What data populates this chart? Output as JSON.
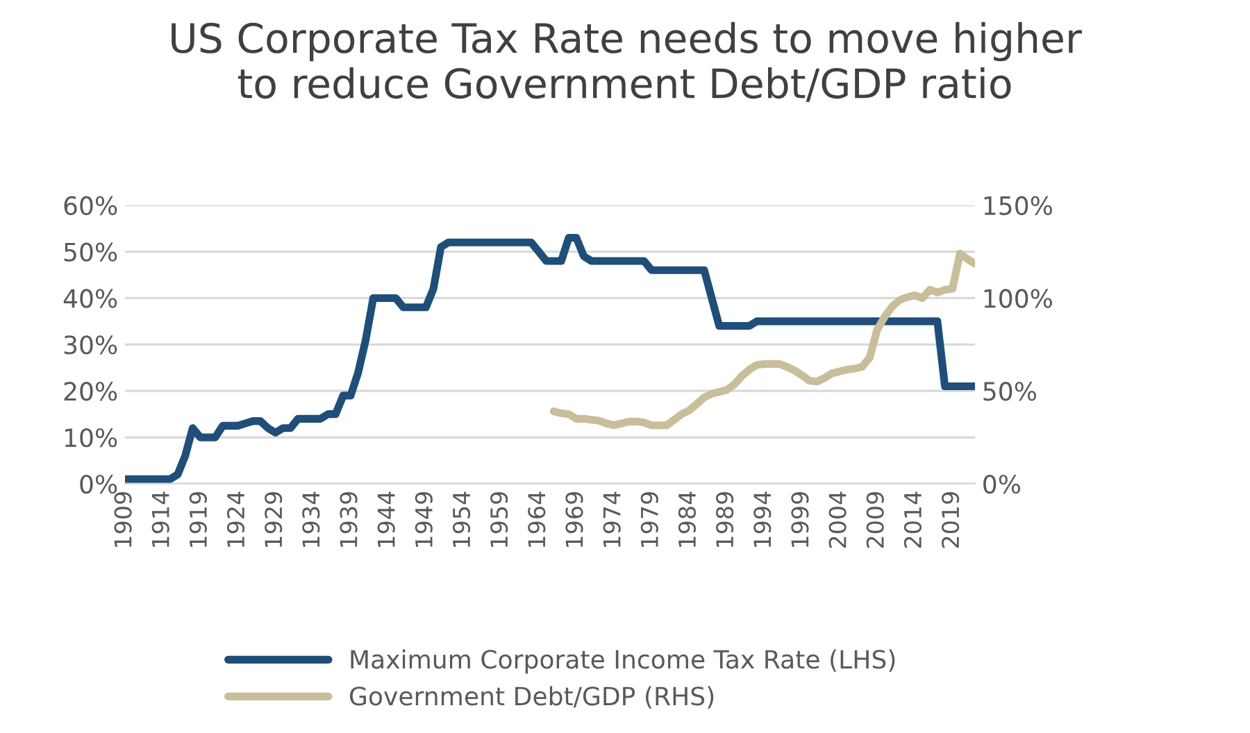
{
  "chart_data": {
    "type": "line",
    "title": "US Corporate Tax Rate needs to move higher\nto reduce Government Debt/GDP ratio",
    "x": [
      1909,
      1910,
      1911,
      1912,
      1913,
      1914,
      1915,
      1916,
      1917,
      1918,
      1919,
      1920,
      1921,
      1922,
      1923,
      1924,
      1925,
      1926,
      1927,
      1928,
      1929,
      1930,
      1931,
      1932,
      1933,
      1934,
      1935,
      1936,
      1937,
      1938,
      1939,
      1940,
      1941,
      1942,
      1943,
      1944,
      1945,
      1946,
      1947,
      1948,
      1949,
      1950,
      1951,
      1952,
      1953,
      1954,
      1955,
      1956,
      1957,
      1958,
      1959,
      1960,
      1961,
      1962,
      1963,
      1964,
      1965,
      1966,
      1967,
      1968,
      1969,
      1970,
      1971,
      1972,
      1973,
      1974,
      1975,
      1976,
      1977,
      1978,
      1979,
      1980,
      1981,
      1982,
      1983,
      1984,
      1985,
      1986,
      1987,
      1988,
      1989,
      1990,
      1991,
      1992,
      1993,
      1994,
      1995,
      1996,
      1997,
      1998,
      1999,
      2000,
      2001,
      2002,
      2003,
      2004,
      2005,
      2006,
      2007,
      2008,
      2009,
      2010,
      2011,
      2012,
      2013,
      2014,
      2015,
      2016,
      2017,
      2018,
      2019,
      2020,
      2021,
      2022
    ],
    "series": [
      {
        "name": "Maximum Corporate Income Tax Rate (LHS)",
        "color": "#1f4e79",
        "values": [
          1,
          1,
          1,
          1,
          1,
          1,
          1,
          2,
          6,
          12,
          10,
          10,
          10,
          12.5,
          12.5,
          12.5,
          13,
          13.5,
          13.5,
          12,
          11,
          12,
          12,
          14,
          14,
          14,
          14,
          15,
          15,
          19,
          19,
          24,
          31,
          40,
          40,
          40,
          40,
          38,
          38,
          38,
          38,
          42,
          51,
          52,
          52,
          52,
          52,
          52,
          52,
          52,
          52,
          52,
          52,
          52,
          52,
          50,
          48,
          48,
          48,
          53,
          53,
          49,
          48,
          48,
          48,
          48,
          48,
          48,
          48,
          48,
          46,
          46,
          46,
          46,
          46,
          46,
          46,
          46,
          40,
          34,
          34,
          34,
          34,
          34,
          35,
          35,
          35,
          35,
          35,
          35,
          35,
          35,
          35,
          35,
          35,
          35,
          35,
          35,
          35,
          35,
          35,
          35,
          35,
          35,
          35,
          35,
          35,
          35,
          35,
          21,
          21,
          21,
          21,
          21
        ]
      },
      {
        "name": "Government Debt/GDP (RHS)",
        "color": "#c8bf9a",
        "axis": "y2",
        "values": [
          null,
          null,
          null,
          null,
          null,
          null,
          null,
          null,
          null,
          null,
          null,
          null,
          null,
          null,
          null,
          null,
          null,
          null,
          null,
          null,
          null,
          null,
          null,
          null,
          null,
          null,
          null,
          null,
          null,
          null,
          null,
          null,
          null,
          null,
          null,
          null,
          null,
          null,
          null,
          null,
          null,
          null,
          null,
          null,
          null,
          null,
          null,
          null,
          null,
          null,
          null,
          null,
          null,
          null,
          null,
          null,
          null,
          39,
          38,
          37.5,
          35,
          35,
          34.5,
          34,
          32.5,
          31.5,
          32.5,
          33.5,
          33.5,
          33,
          31.5,
          31.5,
          31.5,
          34.5,
          37.5,
          39.5,
          43,
          46.5,
          48.5,
          49.5,
          50.5,
          53.5,
          58,
          61.5,
          64,
          64.5,
          64.5,
          64.5,
          63,
          61,
          58.5,
          55.5,
          55,
          57,
          59.5,
          60.5,
          61.5,
          62,
          63,
          68,
          83,
          90,
          95.5,
          99,
          100.5,
          101.5,
          100,
          104.5,
          103,
          104.5,
          105,
          124,
          121,
          118.5
        ]
      }
    ],
    "xlim": [
      1909,
      2022
    ],
    "xticks": [
      1909,
      1914,
      1919,
      1924,
      1929,
      1934,
      1939,
      1944,
      1949,
      1954,
      1959,
      1964,
      1969,
      1974,
      1979,
      1984,
      1989,
      1994,
      1999,
      2004,
      2009,
      2014,
      2019
    ],
    "ylim": [
      0,
      60
    ],
    "yticks": [
      {
        "value": 0,
        "label": "0%"
      },
      {
        "value": 10,
        "label": "10%"
      },
      {
        "value": 20,
        "label": "20%"
      },
      {
        "value": 30,
        "label": "30%"
      },
      {
        "value": 40,
        "label": "40%"
      },
      {
        "value": 50,
        "label": "50%"
      },
      {
        "value": 60,
        "label": "60%"
      }
    ],
    "y2lim": [
      0,
      150
    ],
    "y2ticks": [
      {
        "value": 0,
        "label": "0%"
      },
      {
        "value": 50,
        "label": "50%"
      },
      {
        "value": 100,
        "label": "100%"
      },
      {
        "value": 150,
        "label": "150%"
      }
    ],
    "grid": "y",
    "legend": "bottom",
    "marker": "none",
    "line_style": "solid"
  }
}
